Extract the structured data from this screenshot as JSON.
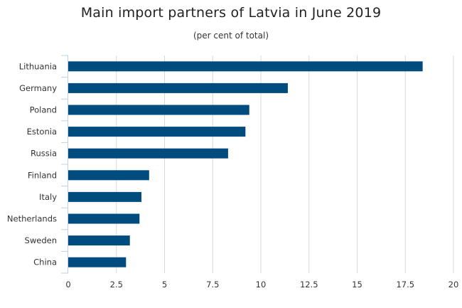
{
  "chart_data": {
    "type": "bar",
    "orientation": "horizontal",
    "title": "Main import partners of Latvia in June 2019",
    "subtitle": "(per cent of total)",
    "categories": [
      "Lithuania",
      "Germany",
      "Poland",
      "Estonia",
      "Russia",
      "Finland",
      "Italy",
      "Netherlands",
      "Sweden",
      "China"
    ],
    "values": [
      18.4,
      11.4,
      9.4,
      9.2,
      8.3,
      4.2,
      3.8,
      3.7,
      3.2,
      3.0
    ],
    "xlim": [
      0,
      20
    ],
    "xticks": [
      "0",
      "2.5",
      "5",
      "7.5",
      "10",
      "12.5",
      "15",
      "17.5",
      "20"
    ],
    "xlabel": "",
    "ylabel": "",
    "grid": "vertical",
    "legend": "none",
    "bar_color": "#004c7f"
  }
}
